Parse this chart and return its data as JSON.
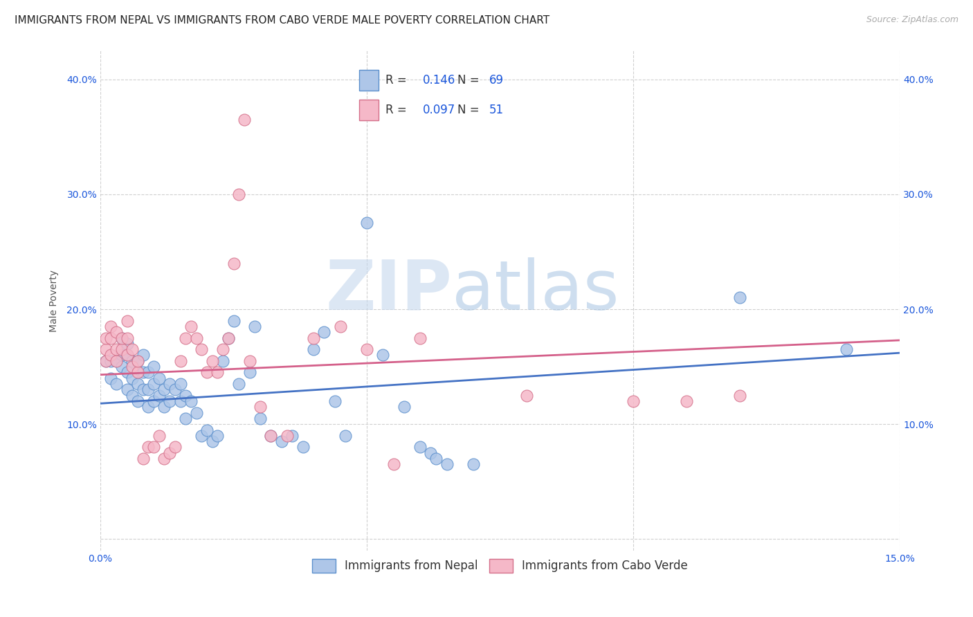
{
  "title": "IMMIGRANTS FROM NEPAL VS IMMIGRANTS FROM CABO VERDE MALE POVERTY CORRELATION CHART",
  "source": "Source: ZipAtlas.com",
  "ylabel": "Male Poverty",
  "xlabel": "",
  "xlim": [
    0.0,
    0.15
  ],
  "ylim": [
    -0.01,
    0.425
  ],
  "yticks": [
    0.0,
    0.1,
    0.2,
    0.3,
    0.4
  ],
  "ytick_labels": [
    "",
    "10.0%",
    "20.0%",
    "30.0%",
    "40.0%"
  ],
  "xticks": [
    0.0,
    0.05,
    0.1,
    0.15
  ],
  "xtick_labels": [
    "0.0%",
    "",
    "",
    "15.0%"
  ],
  "nepal_color": "#aec6e8",
  "nepal_edge": "#5b8fcc",
  "cabo_color": "#f5b8c8",
  "cabo_edge": "#d4708a",
  "nepal_R": 0.146,
  "nepal_N": 69,
  "cabo_R": 0.097,
  "cabo_N": 51,
  "legend_color": "#1a56db",
  "watermark_zip": "ZIP",
  "watermark_atlas": "atlas",
  "nepal_scatter": [
    [
      0.001,
      0.155
    ],
    [
      0.002,
      0.14
    ],
    [
      0.002,
      0.155
    ],
    [
      0.003,
      0.135
    ],
    [
      0.003,
      0.155
    ],
    [
      0.004,
      0.15
    ],
    [
      0.004,
      0.16
    ],
    [
      0.004,
      0.175
    ],
    [
      0.005,
      0.13
    ],
    [
      0.005,
      0.145
    ],
    [
      0.005,
      0.16
    ],
    [
      0.005,
      0.17
    ],
    [
      0.006,
      0.125
    ],
    [
      0.006,
      0.14
    ],
    [
      0.006,
      0.155
    ],
    [
      0.007,
      0.12
    ],
    [
      0.007,
      0.135
    ],
    [
      0.007,
      0.155
    ],
    [
      0.008,
      0.13
    ],
    [
      0.008,
      0.145
    ],
    [
      0.008,
      0.16
    ],
    [
      0.009,
      0.115
    ],
    [
      0.009,
      0.13
    ],
    [
      0.009,
      0.145
    ],
    [
      0.01,
      0.12
    ],
    [
      0.01,
      0.135
    ],
    [
      0.01,
      0.15
    ],
    [
      0.011,
      0.125
    ],
    [
      0.011,
      0.14
    ],
    [
      0.012,
      0.115
    ],
    [
      0.012,
      0.13
    ],
    [
      0.013,
      0.12
    ],
    [
      0.013,
      0.135
    ],
    [
      0.014,
      0.13
    ],
    [
      0.015,
      0.12
    ],
    [
      0.015,
      0.135
    ],
    [
      0.016,
      0.105
    ],
    [
      0.016,
      0.125
    ],
    [
      0.017,
      0.12
    ],
    [
      0.018,
      0.11
    ],
    [
      0.019,
      0.09
    ],
    [
      0.02,
      0.095
    ],
    [
      0.021,
      0.085
    ],
    [
      0.022,
      0.09
    ],
    [
      0.023,
      0.155
    ],
    [
      0.024,
      0.175
    ],
    [
      0.025,
      0.19
    ],
    [
      0.026,
      0.135
    ],
    [
      0.028,
      0.145
    ],
    [
      0.029,
      0.185
    ],
    [
      0.03,
      0.105
    ],
    [
      0.032,
      0.09
    ],
    [
      0.034,
      0.085
    ],
    [
      0.036,
      0.09
    ],
    [
      0.038,
      0.08
    ],
    [
      0.04,
      0.165
    ],
    [
      0.042,
      0.18
    ],
    [
      0.044,
      0.12
    ],
    [
      0.046,
      0.09
    ],
    [
      0.05,
      0.275
    ],
    [
      0.053,
      0.16
    ],
    [
      0.057,
      0.115
    ],
    [
      0.06,
      0.08
    ],
    [
      0.062,
      0.075
    ],
    [
      0.063,
      0.07
    ],
    [
      0.065,
      0.065
    ],
    [
      0.07,
      0.065
    ],
    [
      0.12,
      0.21
    ],
    [
      0.14,
      0.165
    ]
  ],
  "cabo_scatter": [
    [
      0.001,
      0.155
    ],
    [
      0.001,
      0.165
    ],
    [
      0.001,
      0.175
    ],
    [
      0.002,
      0.16
    ],
    [
      0.002,
      0.175
    ],
    [
      0.002,
      0.185
    ],
    [
      0.003,
      0.155
    ],
    [
      0.003,
      0.165
    ],
    [
      0.003,
      0.18
    ],
    [
      0.004,
      0.165
    ],
    [
      0.004,
      0.175
    ],
    [
      0.005,
      0.16
    ],
    [
      0.005,
      0.175
    ],
    [
      0.005,
      0.19
    ],
    [
      0.006,
      0.15
    ],
    [
      0.006,
      0.165
    ],
    [
      0.007,
      0.145
    ],
    [
      0.007,
      0.155
    ],
    [
      0.008,
      0.07
    ],
    [
      0.009,
      0.08
    ],
    [
      0.01,
      0.08
    ],
    [
      0.011,
      0.09
    ],
    [
      0.012,
      0.07
    ],
    [
      0.013,
      0.075
    ],
    [
      0.014,
      0.08
    ],
    [
      0.015,
      0.155
    ],
    [
      0.016,
      0.175
    ],
    [
      0.017,
      0.185
    ],
    [
      0.018,
      0.175
    ],
    [
      0.019,
      0.165
    ],
    [
      0.02,
      0.145
    ],
    [
      0.021,
      0.155
    ],
    [
      0.022,
      0.145
    ],
    [
      0.023,
      0.165
    ],
    [
      0.024,
      0.175
    ],
    [
      0.025,
      0.24
    ],
    [
      0.026,
      0.3
    ],
    [
      0.027,
      0.365
    ],
    [
      0.028,
      0.155
    ],
    [
      0.03,
      0.115
    ],
    [
      0.032,
      0.09
    ],
    [
      0.035,
      0.09
    ],
    [
      0.04,
      0.175
    ],
    [
      0.045,
      0.185
    ],
    [
      0.05,
      0.165
    ],
    [
      0.06,
      0.175
    ],
    [
      0.08,
      0.125
    ],
    [
      0.1,
      0.12
    ],
    [
      0.11,
      0.12
    ],
    [
      0.12,
      0.125
    ],
    [
      0.055,
      0.065
    ]
  ],
  "nepal_line": {
    "x0": 0.0,
    "y0": 0.118,
    "x1": 0.15,
    "y1": 0.162
  },
  "cabo_line": {
    "x0": 0.0,
    "y0": 0.143,
    "x1": 0.15,
    "y1": 0.173
  },
  "grid_color": "#d0d0d0",
  "background_color": "#ffffff",
  "title_fontsize": 11,
  "axis_label_fontsize": 10,
  "tick_fontsize": 10,
  "legend_fontsize": 12
}
